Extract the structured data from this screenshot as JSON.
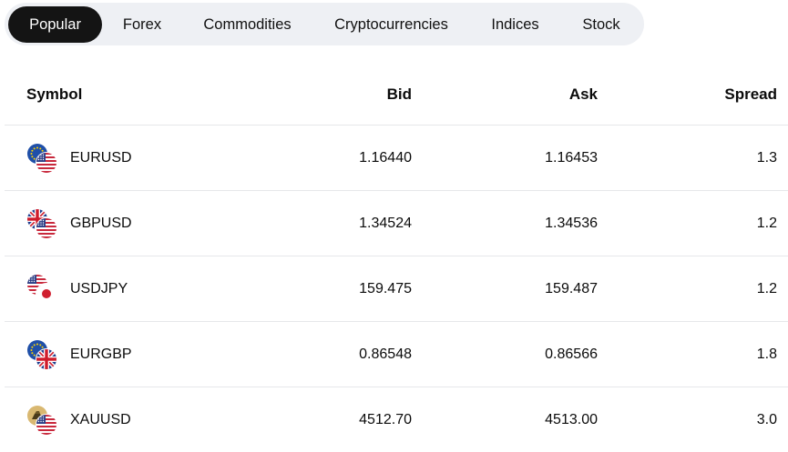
{
  "tabs": [
    {
      "label": "Popular",
      "active": true
    },
    {
      "label": "Forex",
      "active": false
    },
    {
      "label": "Commodities",
      "active": false
    },
    {
      "label": "Cryptocurrencies",
      "active": false
    },
    {
      "label": "Indices",
      "active": false
    },
    {
      "label": "Stock",
      "active": false
    }
  ],
  "table": {
    "headers": {
      "symbol": "Symbol",
      "bid": "Bid",
      "ask": "Ask",
      "spread": "Spread"
    },
    "rows": [
      {
        "symbol": "EURUSD",
        "bid": "1.16440",
        "ask": "1.16453",
        "spread": "1.3",
        "base_icon": "eu-flag-icon",
        "quote_icon": "us-flag-icon"
      },
      {
        "symbol": "GBPUSD",
        "bid": "1.34524",
        "ask": "1.34536",
        "spread": "1.2",
        "base_icon": "uk-flag-icon",
        "quote_icon": "us-flag-icon"
      },
      {
        "symbol": "USDJPY",
        "bid": "159.475",
        "ask": "159.487",
        "spread": "1.2",
        "base_icon": "us-flag-icon",
        "quote_icon": "jp-flag-icon"
      },
      {
        "symbol": "EURGBP",
        "bid": "0.86548",
        "ask": "0.86566",
        "spread": "1.8",
        "base_icon": "eu-flag-icon",
        "quote_icon": "uk-flag-icon"
      },
      {
        "symbol": "XAUUSD",
        "bid": "4512.70",
        "ask": "4513.00",
        "spread": "3.0",
        "base_icon": "gold-icon",
        "quote_icon": "us-flag-icon"
      }
    ]
  },
  "colors": {
    "tab_bar_bg": "#eef0f4",
    "active_tab_bg": "#141414",
    "active_tab_text": "#ffffff",
    "divider": "#e6e7ea"
  }
}
